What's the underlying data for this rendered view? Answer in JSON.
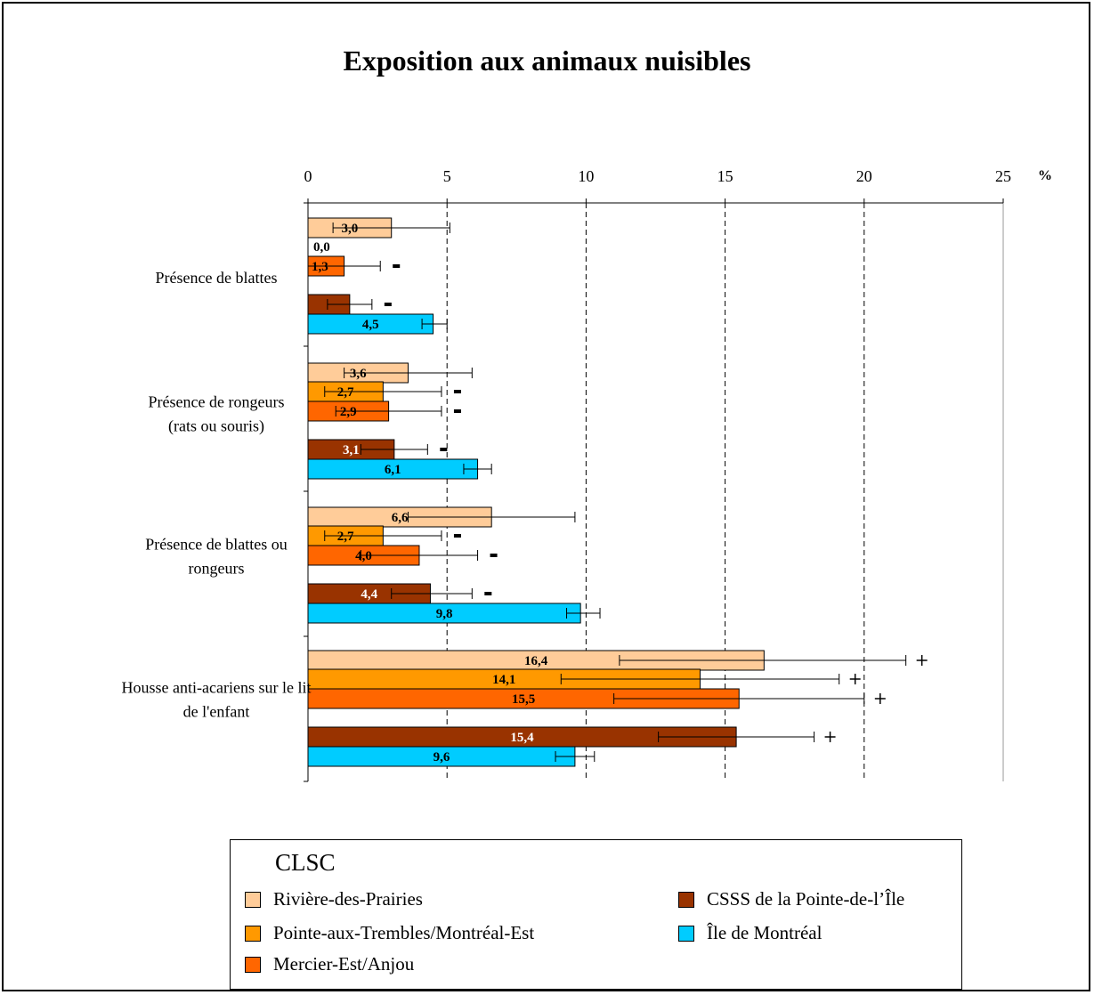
{
  "chart_data": {
    "type": "bar",
    "orientation": "horizontal",
    "title": "Exposition aux animaux nuisibles",
    "x_unit": "%",
    "xlim": [
      0,
      25
    ],
    "x_ticks": [
      "0",
      "5",
      "10",
      "15",
      "20",
      "25"
    ],
    "grid": "vertical dashed at 5, 10, 15, 20",
    "categories": [
      [
        "Présence de blattes"
      ],
      [
        "Présence de rongeurs",
        "(rats ou souris)"
      ],
      [
        "Présence de blattes ou",
        "rongeurs"
      ],
      [
        "Housse anti-acariens sur le lit",
        "de l'enfant"
      ]
    ],
    "series": [
      {
        "name": "Rivière-des-Prairies",
        "color": "#FFCC99",
        "label_color": "#000000",
        "values": [
          3.0,
          3.6,
          6.6,
          16.4
        ],
        "labels": [
          "3,0",
          "3,6",
          "6,6",
          "16,4"
        ],
        "ci": [
          [
            0.9,
            5.1
          ],
          [
            1.3,
            5.9
          ],
          [
            3.6,
            9.6
          ],
          [
            11.2,
            21.5
          ]
        ],
        "markers": [
          "",
          "",
          "",
          "+"
        ]
      },
      {
        "name": "Pointe-aux-Trembles/Montréal-Est",
        "color": "#FF9900",
        "label_color": "#000000",
        "values": [
          0.0,
          2.7,
          2.7,
          14.1
        ],
        "labels": [
          "0,0",
          "2,7",
          "2,7",
          "14,1"
        ],
        "ci": [
          null,
          [
            0.6,
            4.8
          ],
          [
            0.6,
            4.8
          ],
          [
            9.1,
            19.1
          ]
        ],
        "markers": [
          "",
          "-",
          "-",
          "+"
        ]
      },
      {
        "name": "Mercier-Est/Anjou",
        "color": "#FF6600",
        "label_color": "#000000",
        "values": [
          1.3,
          2.9,
          4.0,
          15.5
        ],
        "labels": [
          "1,3",
          "2,9",
          "4,0",
          "15,5"
        ],
        "ci": [
          [
            0.0,
            2.6
          ],
          [
            1.0,
            4.8
          ],
          [
            1.9,
            6.1
          ],
          [
            11.0,
            20.0
          ]
        ],
        "markers": [
          "-",
          "-",
          "-",
          "+"
        ]
      },
      {
        "name": "CSSS de la Pointe-de-l’Île",
        "color": "#993300",
        "label_color": "#ffffff",
        "values": [
          1.5,
          3.1,
          4.4,
          15.4
        ],
        "labels": [
          "",
          "3,1",
          "4,4",
          "15,4"
        ],
        "ci": [
          [
            0.7,
            2.3
          ],
          [
            1.9,
            4.3
          ],
          [
            3.0,
            5.9
          ],
          [
            12.6,
            18.2
          ]
        ],
        "markers": [
          "-",
          "-",
          "-",
          "+"
        ]
      },
      {
        "name": "Île de Montréal",
        "color": "#00CCFF",
        "label_color": "#000000",
        "values": [
          4.5,
          6.1,
          9.8,
          9.6
        ],
        "labels": [
          "4,5",
          "6,1",
          "9,8",
          "9,6"
        ],
        "ci": [
          [
            4.1,
            5.0
          ],
          [
            5.6,
            6.6
          ],
          [
            9.3,
            10.5
          ],
          [
            8.9,
            10.3
          ]
        ],
        "markers": [
          "",
          "",
          "",
          ""
        ]
      }
    ],
    "legend": {
      "title": "CLSC",
      "placement": "bottom"
    }
  }
}
